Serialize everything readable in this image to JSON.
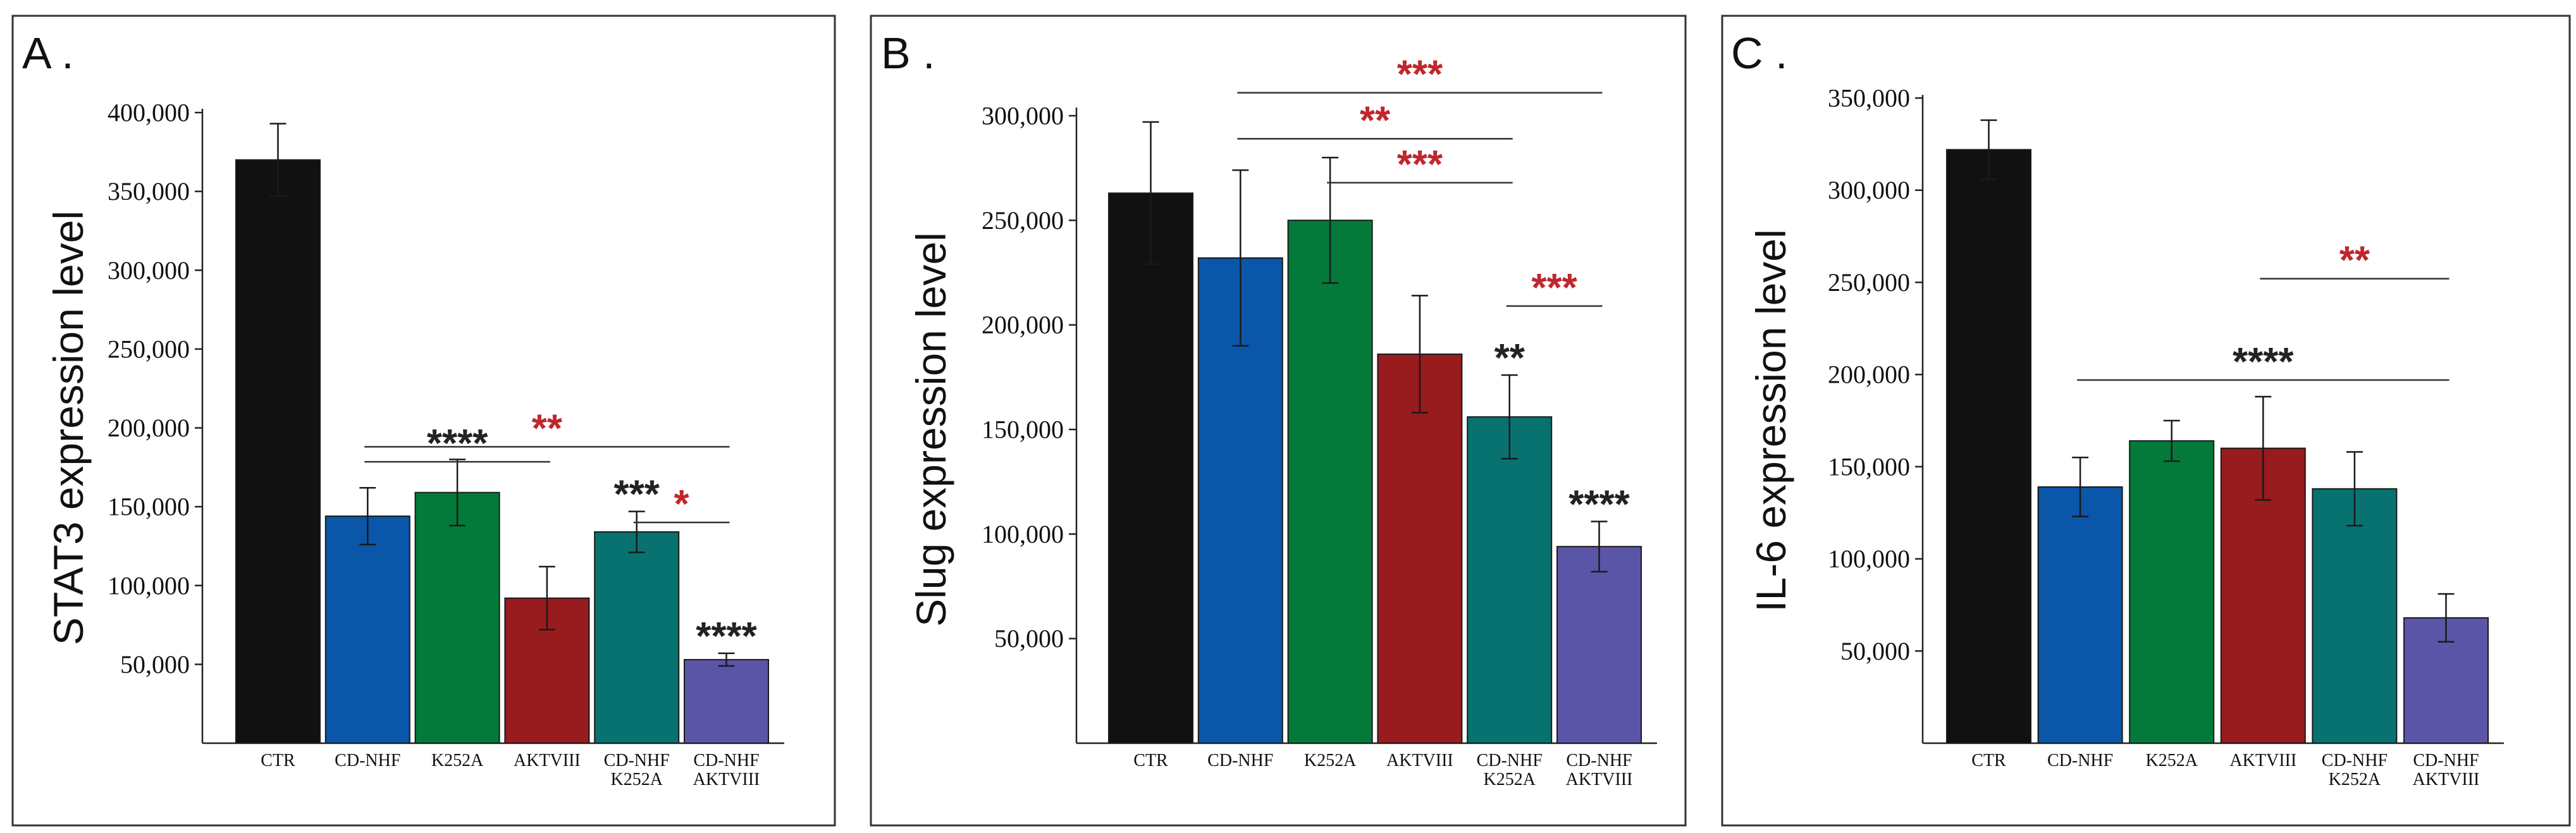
{
  "colors": {
    "CTR": "#111111",
    "CD-NHF": "#0a56a8",
    "K252A": "#037a3a",
    "AKTVIII": "#981b1e",
    "CD-NHF K252A": "#087270",
    "CD-NHF AKTVIII": "#5b55a8",
    "sig_red": "#c0272d",
    "sig_black": "#222222"
  },
  "chart_data": [
    {
      "type": "bar",
      "panel": "A .",
      "ylabel": "STAT3 expression level",
      "categories": [
        [
          "CTR"
        ],
        [
          "CD-NHF"
        ],
        [
          "K252A"
        ],
        [
          "AKTVIII"
        ],
        [
          "CD-NHF",
          "K252A"
        ],
        [
          "CD-NHF",
          "AKTVIII"
        ]
      ],
      "values": [
        370000,
        144000,
        159000,
        92000,
        134000,
        53000
      ],
      "errors": [
        23000,
        18000,
        21000,
        20000,
        13000,
        4000
      ],
      "ylim": [
        0,
        400000
      ],
      "yticks": [
        50000,
        100000,
        150000,
        200000,
        250000,
        300000,
        350000,
        400000
      ],
      "ytick_labels": [
        "50,000",
        "100,000",
        "150,000",
        "200,000",
        "250,000",
        "300,000",
        "350,000",
        "400,000"
      ],
      "brackets": [
        {
          "from": 1,
          "to": 5,
          "y": 188000,
          "label": "**",
          "color": "red"
        },
        {
          "from": 4,
          "to": 5,
          "y": 140000,
          "label": "*",
          "color": "red"
        },
        {
          "from": 1,
          "to": 3,
          "y": 178500,
          "label": "****",
          "color": "black"
        }
      ],
      "bar_labels": [
        {
          "index": 4,
          "label": "***"
        },
        {
          "index": 5,
          "label": "****"
        }
      ]
    },
    {
      "type": "bar",
      "panel": "B .",
      "ylabel": "Slug expression level",
      "categories": [
        [
          "CTR"
        ],
        [
          "CD-NHF"
        ],
        [
          "K252A"
        ],
        [
          "AKTVIII"
        ],
        [
          "CD-NHF",
          "K252A"
        ],
        [
          "CD-NHF",
          "AKTVIII"
        ]
      ],
      "values": [
        263000,
        232000,
        250000,
        186000,
        156000,
        94000
      ],
      "errors": [
        34000,
        42000,
        30000,
        28000,
        20000,
        12000
      ],
      "ylim": [
        0,
        300000
      ],
      "yticks": [
        50000,
        100000,
        150000,
        200000,
        250000,
        300000
      ],
      "ytick_labels": [
        "50,000",
        "100,000",
        "150,000",
        "200,000",
        "250,000",
        "300,000"
      ],
      "brackets": [
        {
          "from": 1,
          "to": 5,
          "y": 311000,
          "label": "***",
          "color": "red"
        },
        {
          "from": 1,
          "to": 4,
          "y": 289000,
          "label": "**",
          "color": "red"
        },
        {
          "from": 2,
          "to": 4,
          "y": 268000,
          "label": "***",
          "color": "red"
        },
        {
          "from": 4,
          "to": 5,
          "y": 209000,
          "label": "***",
          "color": "red"
        }
      ],
      "bar_labels": [
        {
          "index": 4,
          "label": "**"
        },
        {
          "index": 5,
          "label": "****"
        }
      ]
    },
    {
      "type": "bar",
      "panel": "C .",
      "ylabel": "IL-6 expression level",
      "categories": [
        [
          "CTR"
        ],
        [
          "CD-NHF"
        ],
        [
          "K252A"
        ],
        [
          "AKTVIII"
        ],
        [
          "CD-NHF",
          "K252A"
        ],
        [
          "CD-NHF",
          "AKTVIII"
        ]
      ],
      "values": [
        322000,
        139000,
        164000,
        160000,
        138000,
        68000
      ],
      "errors": [
        16000,
        16000,
        11000,
        28000,
        20000,
        13000
      ],
      "ylim": [
        0,
        350000
      ],
      "yticks": [
        50000,
        100000,
        150000,
        200000,
        250000,
        300000,
        350000
      ],
      "ytick_labels": [
        "50,000",
        "100,000",
        "150,000",
        "200,000",
        "250,000",
        "300,000",
        "350,000"
      ],
      "brackets": [
        {
          "from": 3,
          "to": 5,
          "y": 252000,
          "label": "**",
          "color": "red"
        },
        {
          "from": 1,
          "to": 5,
          "y": 197000,
          "label": "****",
          "color": "black"
        }
      ],
      "bar_labels": []
    }
  ]
}
